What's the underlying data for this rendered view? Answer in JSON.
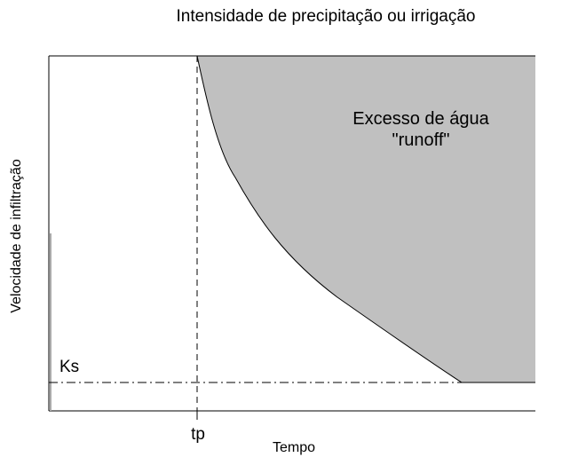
{
  "title": "Intensidade de precipitação ou irrigação",
  "y_axis_label": "Velocidade de infiltração",
  "x_axis_label": "Tempo",
  "tp_label": "tp",
  "ks_label": "Ks",
  "region_label": [
    "Excesso de água",
    "\"runoff\""
  ]
}
